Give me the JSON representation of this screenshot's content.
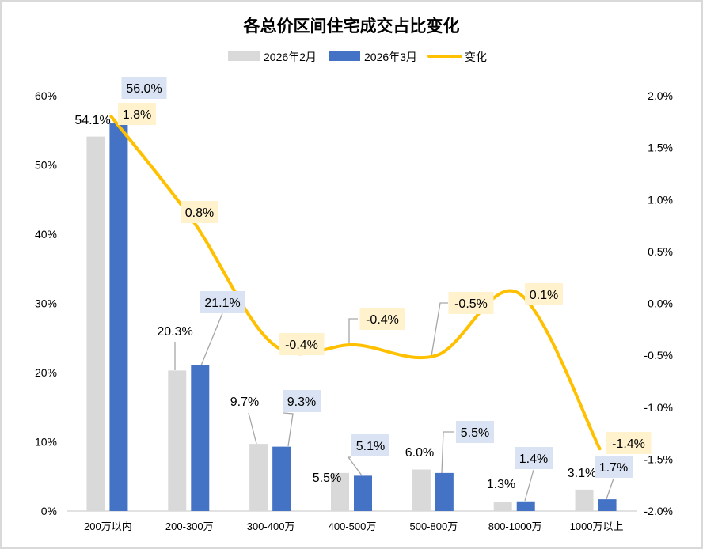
{
  "chart_data": {
    "type": "bar+line",
    "title": "各总价区间住宅成交占比变化",
    "categories": [
      "200万以内",
      "200-300万",
      "300-400万",
      "400-500万",
      "500-800万",
      "800-1000万",
      "1000万以上"
    ],
    "series": [
      {
        "name": "2026年2月",
        "type": "bar",
        "axis": "left",
        "color": "#d9d9d9",
        "values": [
          54.1,
          20.3,
          9.7,
          5.5,
          6.0,
          1.3,
          3.1
        ],
        "labels": [
          "54.1%",
          "20.3%",
          "9.7%",
          "5.5%",
          "6.0%",
          "1.3%",
          "3.1%"
        ]
      },
      {
        "name": "2026年3月",
        "type": "bar",
        "axis": "left",
        "color": "#4472c4",
        "values": [
          56.0,
          21.1,
          9.3,
          5.1,
          5.5,
          1.4,
          1.7
        ],
        "labels": [
          "56.0%",
          "21.1%",
          "9.3%",
          "5.1%",
          "5.5%",
          "1.4%",
          "1.7%"
        ]
      },
      {
        "name": "变化",
        "type": "line",
        "axis": "right",
        "color": "#ffc000",
        "smooth": true,
        "values": [
          1.8,
          0.8,
          -0.4,
          -0.4,
          -0.5,
          0.1,
          -1.4
        ],
        "labels": [
          "1.8%",
          "0.8%",
          "-0.4%",
          "-0.4%",
          "-0.5%",
          "0.1%",
          "-1.4%"
        ]
      }
    ],
    "left_axis": {
      "ylim": [
        0,
        60
      ],
      "ticks": [
        "0%",
        "10%",
        "20%",
        "30%",
        "40%",
        "50%",
        "60%"
      ]
    },
    "right_axis": {
      "ylim": [
        -2.0,
        2.0
      ],
      "ticks": [
        "-2.0%",
        "-1.5%",
        "-1.0%",
        "-0.5%",
        "0.0%",
        "0.5%",
        "1.0%",
        "1.5%",
        "2.0%"
      ]
    },
    "legend": "top",
    "grid": false
  }
}
